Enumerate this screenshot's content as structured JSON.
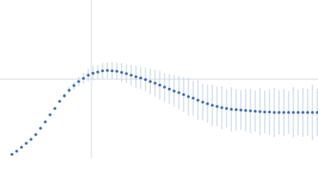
{
  "chart_data": {
    "type": "scatter",
    "xlim": [
      0,
      400
    ],
    "ylim": [
      0,
      200
    ],
    "ref_x": 115,
    "ref_y": 100,
    "ref_color": "#d0d8e0",
    "series": [
      {
        "color": "#3a6bbf",
        "error_color": "#b8cce8",
        "x": [
          15,
          21,
          27,
          33,
          39,
          45,
          51,
          57,
          63,
          69,
          75,
          81,
          87,
          93,
          99,
          105,
          111,
          117,
          123,
          129,
          135,
          141,
          147,
          153,
          159,
          165,
          171,
          177,
          183,
          189,
          195,
          201,
          207,
          213,
          219,
          225,
          231,
          237,
          243,
          249,
          255,
          261,
          267,
          273,
          279,
          285,
          291,
          297,
          303,
          309,
          315,
          321,
          327,
          333,
          339,
          345,
          351,
          357,
          363,
          369,
          375,
          381,
          387,
          393,
          399
        ],
        "values": [
          5,
          9,
          14,
          19,
          24,
          30,
          38,
          46,
          55,
          63,
          72,
          79,
          86,
          92,
          97,
          101,
          105,
          107.5,
          109,
          110.5,
          111,
          110.5,
          110,
          108.5,
          107,
          105,
          103,
          101.5,
          99.5,
          97,
          95,
          92.5,
          90,
          87.5,
          85,
          83,
          80.5,
          78,
          76,
          73.5,
          71,
          69,
          67,
          65.5,
          64,
          63,
          62,
          61.5,
          61,
          60.5,
          60,
          59.5,
          59,
          58.5,
          58.5,
          58,
          58,
          58,
          58,
          58,
          58,
          58,
          58,
          58,
          58
        ],
        "errors": [
          1,
          1,
          1,
          1,
          1,
          1,
          1,
          1,
          1,
          1,
          2,
          3,
          4,
          5,
          6,
          7,
          8,
          9,
          9,
          10,
          10,
          11,
          11,
          12,
          12,
          13,
          14,
          14,
          15,
          16,
          17,
          18,
          18,
          19,
          20,
          21,
          22,
          24,
          22,
          25,
          23,
          24,
          26,
          25,
          27,
          24,
          28,
          26,
          25,
          27,
          28,
          26,
          30,
          27,
          29,
          31,
          28,
          30,
          27,
          32,
          29,
          31,
          30,
          35,
          30
        ]
      }
    ]
  }
}
